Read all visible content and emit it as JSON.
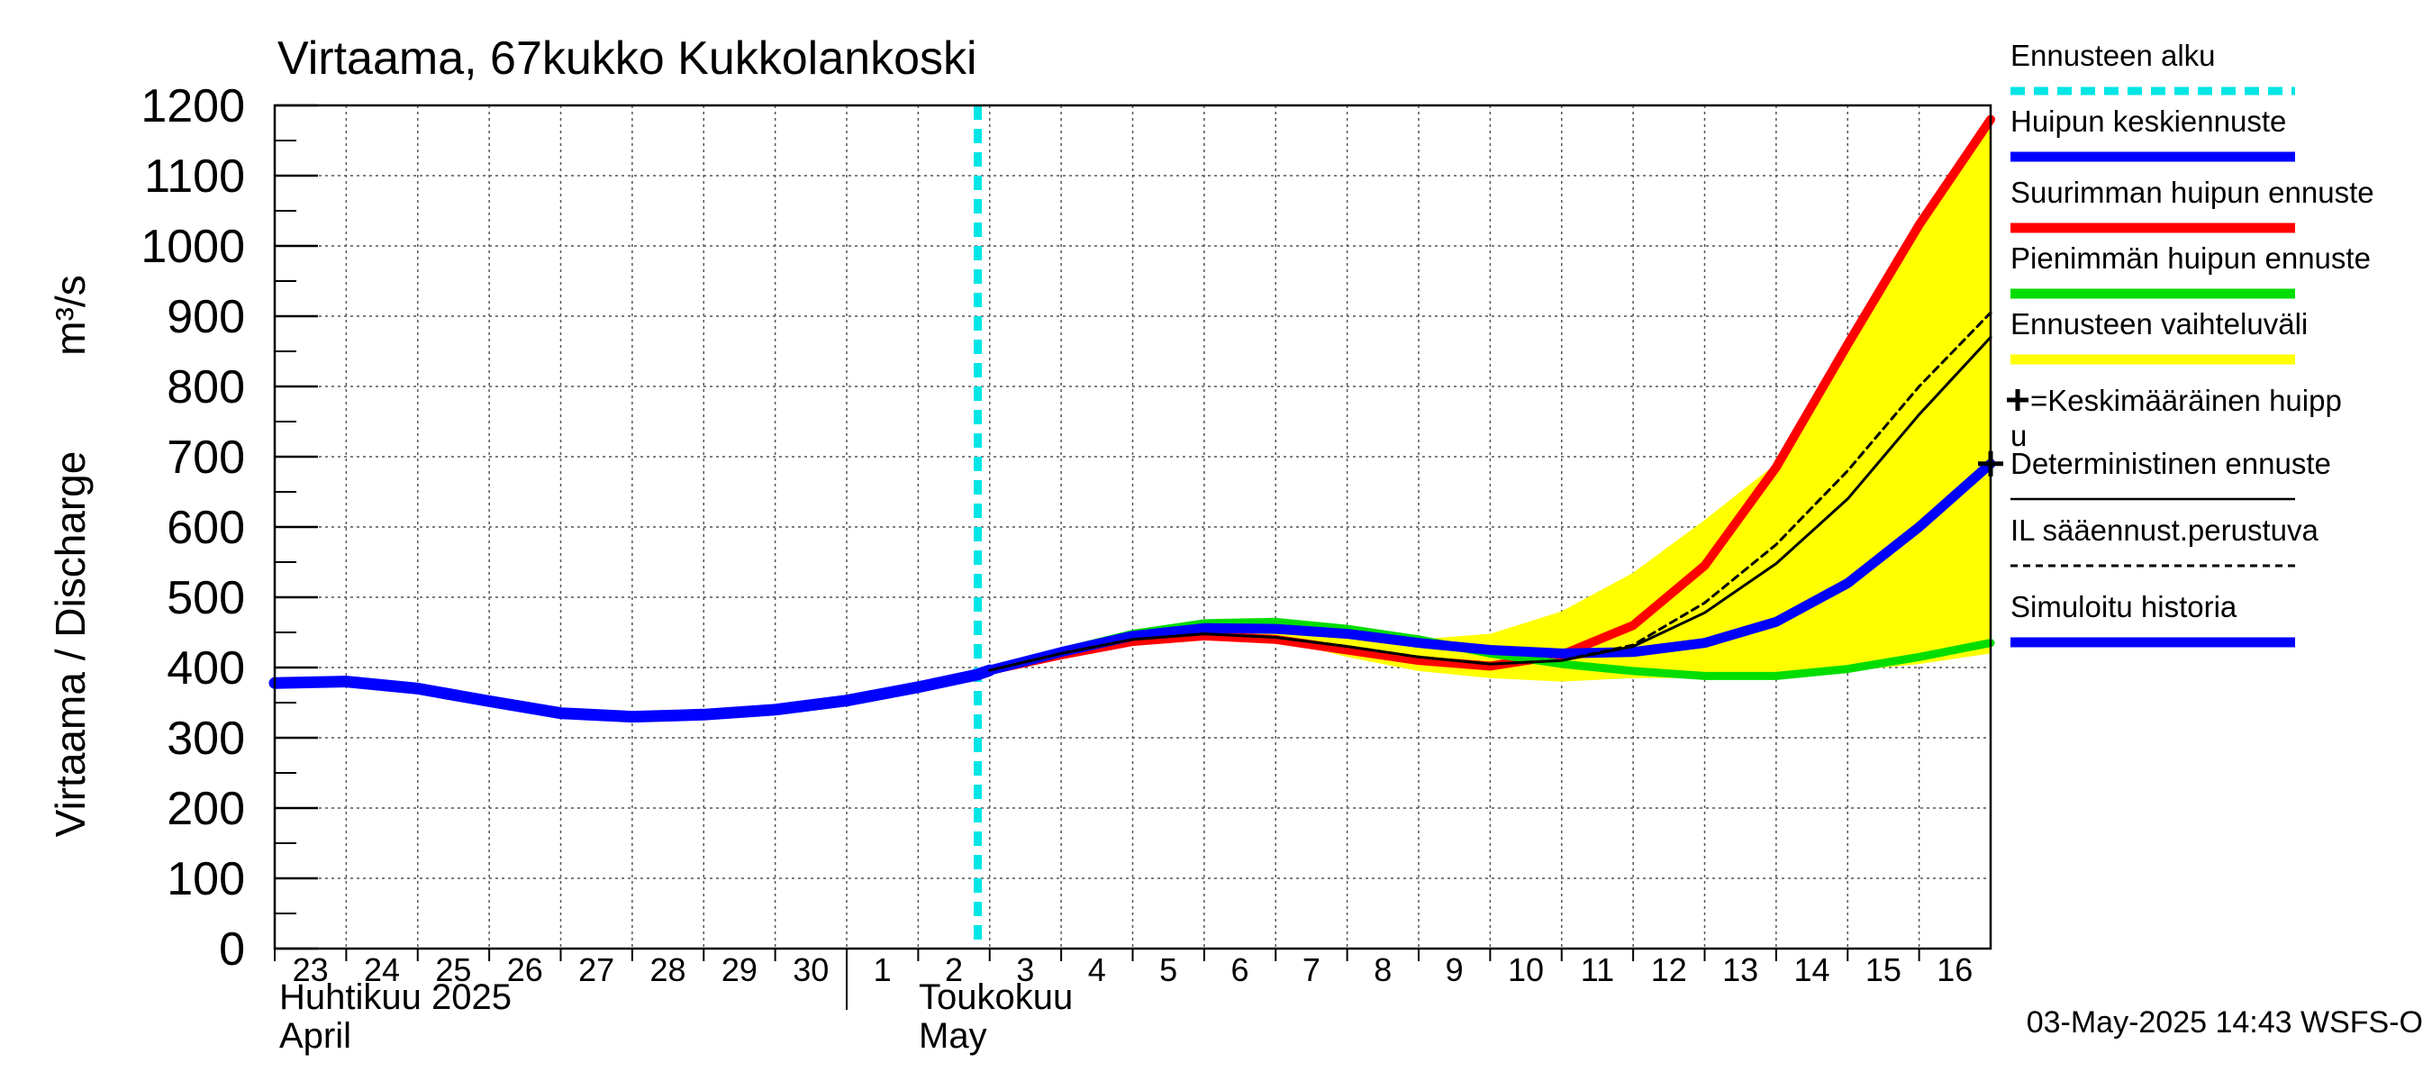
{
  "chart_data": {
    "type": "line",
    "title": "Virtaama, 67kukko Kukkolankoski",
    "ylabel": "Virtaama / Discharge",
    "yunit": "m³/s",
    "ylim": [
      0,
      1200
    ],
    "yticks": [
      0,
      100,
      200,
      300,
      400,
      500,
      600,
      700,
      800,
      900,
      1000,
      1100,
      1200
    ],
    "x_start": "2025-04-23",
    "x_end": "2025-05-17",
    "xtick_labels": [
      "23",
      "24",
      "25",
      "26",
      "27",
      "28",
      "29",
      "30",
      "1",
      "2",
      "3",
      "4",
      "5",
      "6",
      "7",
      "8",
      "9",
      "10",
      "11",
      "12",
      "13",
      "14",
      "15",
      "16"
    ],
    "month_labels": [
      {
        "fi": "Huhtikuu  2025",
        "en": "April",
        "date": "2025-04-23"
      },
      {
        "fi": "Toukokuu",
        "en": "May",
        "date": "2025-05-01"
      }
    ],
    "forecast_start": "2025-05-02T20:00",
    "grid": true,
    "legend_position": "right",
    "timestamp": "03-May-2025 14:43 WSFS-O",
    "legend": [
      {
        "label": "Ennusteen alku",
        "color": "#00e5e5",
        "style": "dashed-thick"
      },
      {
        "label": "Huipun keskiennuste",
        "color": "#0000ff",
        "style": "solid-thick"
      },
      {
        "label": "Suurimman huipun ennuste",
        "color": "#ff0000",
        "style": "solid-thick"
      },
      {
        "label": "Pienimmän huipun ennuste",
        "color": "#00dd00",
        "style": "solid-thick"
      },
      {
        "label": "Ennusteen vaihteluväli",
        "color": "#ffff00",
        "style": "solid-thick"
      },
      {
        "label": "+=Keskimääräinen huipp",
        "label2": "u",
        "color": "#000000",
        "style": "marker"
      },
      {
        "label": "Deterministinen ennuste",
        "color": "#000000",
        "style": "solid-thin"
      },
      {
        "label": "IL sääennust.perustuva",
        "color": "#000000",
        "style": "dashed-thin"
      },
      {
        "label": "Simuloitu historia",
        "color": "#0000ff",
        "style": "solid-thick"
      }
    ],
    "series": [
      {
        "name": "Simuloitu historia",
        "color": "#0000ff",
        "points": [
          [
            "2025-04-23",
            378
          ],
          [
            "2025-04-24",
            380
          ],
          [
            "2025-04-25",
            370
          ],
          [
            "2025-04-26",
            352
          ],
          [
            "2025-04-27",
            335
          ],
          [
            "2025-04-28",
            330
          ],
          [
            "2025-04-29",
            333
          ],
          [
            "2025-04-30",
            340
          ],
          [
            "2025-05-01",
            353
          ],
          [
            "2025-05-02",
            372
          ],
          [
            "2025-05-02T20:00",
            390
          ],
          [
            "2025-05-03",
            396
          ]
        ]
      },
      {
        "name": "Ennusteen vaihteluväli (upper)",
        "color": "#ffff00",
        "points": [
          [
            "2025-05-03",
            396
          ],
          [
            "2025-05-04",
            420
          ],
          [
            "2025-05-05",
            440
          ],
          [
            "2025-05-06",
            452
          ],
          [
            "2025-05-07",
            450
          ],
          [
            "2025-05-08",
            444
          ],
          [
            "2025-05-09",
            440
          ],
          [
            "2025-05-10",
            448
          ],
          [
            "2025-05-11",
            480
          ],
          [
            "2025-05-12",
            535
          ],
          [
            "2025-05-13",
            610
          ],
          [
            "2025-05-14",
            690
          ],
          [
            "2025-05-15",
            860
          ],
          [
            "2025-05-16",
            1030
          ],
          [
            "2025-05-17",
            1180
          ]
        ]
      },
      {
        "name": "Ennusteen vaihteluväli (lower)",
        "color": "#ffff00",
        "points": [
          [
            "2025-05-03",
            396
          ],
          [
            "2025-05-04",
            420
          ],
          [
            "2025-05-05",
            440
          ],
          [
            "2025-05-06",
            452
          ],
          [
            "2025-05-07",
            440
          ],
          [
            "2025-05-08",
            415
          ],
          [
            "2025-05-09",
            395
          ],
          [
            "2025-05-10",
            385
          ],
          [
            "2025-05-11",
            380
          ],
          [
            "2025-05-12",
            385
          ],
          [
            "2025-05-13",
            385
          ],
          [
            "2025-05-14",
            388
          ],
          [
            "2025-05-15",
            395
          ],
          [
            "2025-05-16",
            405
          ],
          [
            "2025-05-17",
            420
          ]
        ]
      },
      {
        "name": "Suurimman huipun ennuste",
        "color": "#ff0000",
        "points": [
          [
            "2025-05-03",
            396
          ],
          [
            "2025-05-04",
            418
          ],
          [
            "2025-05-05",
            437
          ],
          [
            "2025-05-06",
            445
          ],
          [
            "2025-05-07",
            440
          ],
          [
            "2025-05-08",
            425
          ],
          [
            "2025-05-09",
            410
          ],
          [
            "2025-05-10",
            402
          ],
          [
            "2025-05-11",
            418
          ],
          [
            "2025-05-12",
            460
          ],
          [
            "2025-05-13",
            545
          ],
          [
            "2025-05-14",
            685
          ],
          [
            "2025-05-15",
            860
          ],
          [
            "2025-05-16",
            1030
          ],
          [
            "2025-05-17",
            1180
          ]
        ]
      },
      {
        "name": "Pienimmän huipun ennuste",
        "color": "#00dd00",
        "points": [
          [
            "2025-05-03",
            396
          ],
          [
            "2025-05-04",
            423
          ],
          [
            "2025-05-05",
            448
          ],
          [
            "2025-05-06",
            463
          ],
          [
            "2025-05-07",
            465
          ],
          [
            "2025-05-08",
            455
          ],
          [
            "2025-05-09",
            440
          ],
          [
            "2025-05-10",
            420
          ],
          [
            "2025-05-11",
            405
          ],
          [
            "2025-05-12",
            395
          ],
          [
            "2025-05-13",
            388
          ],
          [
            "2025-05-14",
            388
          ],
          [
            "2025-05-15",
            398
          ],
          [
            "2025-05-16",
            415
          ],
          [
            "2025-05-17",
            435
          ]
        ]
      },
      {
        "name": "Huipun keskiennuste",
        "color": "#0000ff",
        "points": [
          [
            "2025-05-03",
            396
          ],
          [
            "2025-05-04",
            422
          ],
          [
            "2025-05-05",
            445
          ],
          [
            "2025-05-06",
            456
          ],
          [
            "2025-05-07",
            455
          ],
          [
            "2025-05-08",
            448
          ],
          [
            "2025-05-09",
            435
          ],
          [
            "2025-05-10",
            425
          ],
          [
            "2025-05-11",
            420
          ],
          [
            "2025-05-12",
            422
          ],
          [
            "2025-05-13",
            435
          ],
          [
            "2025-05-14",
            465
          ],
          [
            "2025-05-15",
            520
          ],
          [
            "2025-05-16",
            600
          ],
          [
            "2025-05-17",
            690
          ]
        ]
      },
      {
        "name": "Deterministinen ennuste",
        "color": "#000000",
        "points": [
          [
            "2025-05-03",
            396
          ],
          [
            "2025-05-04",
            420
          ],
          [
            "2025-05-05",
            440
          ],
          [
            "2025-05-06",
            448
          ],
          [
            "2025-05-07",
            443
          ],
          [
            "2025-05-08",
            430
          ],
          [
            "2025-05-09",
            415
          ],
          [
            "2025-05-10",
            405
          ],
          [
            "2025-05-11",
            410
          ],
          [
            "2025-05-12",
            430
          ],
          [
            "2025-05-13",
            478
          ],
          [
            "2025-05-14",
            548
          ],
          [
            "2025-05-15",
            640
          ],
          [
            "2025-05-16",
            760
          ],
          [
            "2025-05-17",
            870
          ]
        ]
      },
      {
        "name": "IL sääennust.perustuva",
        "color": "#000000",
        "points": [
          [
            "2025-05-03",
            396
          ],
          [
            "2025-05-04",
            420
          ],
          [
            "2025-05-05",
            440
          ],
          [
            "2025-05-06",
            448
          ],
          [
            "2025-05-07",
            443
          ],
          [
            "2025-05-08",
            430
          ],
          [
            "2025-05-09",
            415
          ],
          [
            "2025-05-10",
            405
          ],
          [
            "2025-05-11",
            410
          ],
          [
            "2025-05-12",
            432
          ],
          [
            "2025-05-13",
            492
          ],
          [
            "2025-05-14",
            575
          ],
          [
            "2025-05-15",
            680
          ],
          [
            "2025-05-16",
            800
          ],
          [
            "2025-05-17",
            905
          ]
        ]
      }
    ],
    "mean_peak_marker": {
      "date": "2025-05-17",
      "value": 690
    }
  }
}
